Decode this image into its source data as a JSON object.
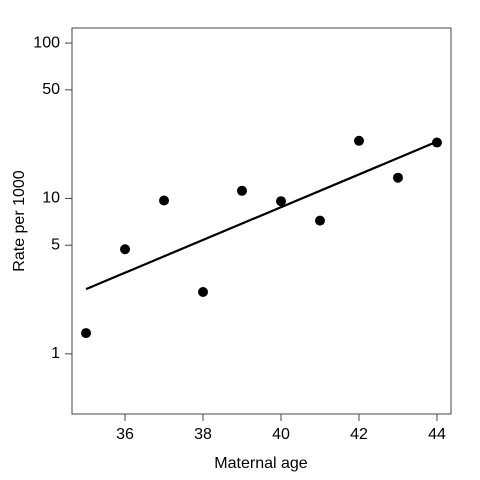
{
  "chart_data": {
    "type": "scatter",
    "x_label": "Maternal age",
    "y_label": "Rate per 1000",
    "x": [
      35,
      36,
      37,
      38,
      39,
      40,
      41,
      42,
      43,
      44
    ],
    "values": [
      1.36,
      4.71,
      9.7,
      2.5,
      11.2,
      9.6,
      7.2,
      23.5,
      13.6,
      22.9
    ],
    "color": "#000000",
    "trend_line": {
      "x": [
        35,
        44
      ],
      "values": [
        2.61,
        23.2
      ],
      "color": "#000000"
    },
    "xlim": [
      34.64,
      44.36
    ],
    "ylim": [
      0.41,
      125
    ],
    "xticks": [
      36,
      38,
      40,
      42,
      44
    ],
    "yticks": [
      1,
      5,
      10,
      50,
      100
    ],
    "y_scale": "log"
  }
}
